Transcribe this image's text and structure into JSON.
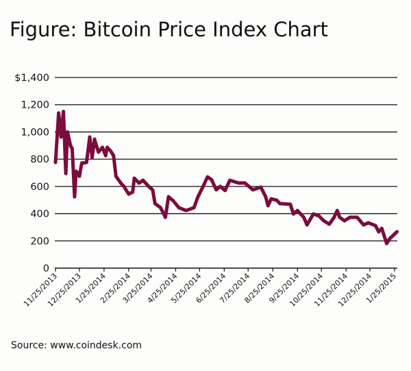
{
  "chart_data": {
    "type": "line",
    "title": "Figure: Bitcoin Price Index Chart",
    "source": "Source: www.coindesk.com",
    "xlabel": "",
    "ylabel": "",
    "ylim": [
      0,
      1400
    ],
    "grid": "horizontal",
    "legend": "none",
    "line_color": "#7b0c3d",
    "y_ticks": [
      {
        "value": 0,
        "label": "0"
      },
      {
        "value": 200,
        "label": "200"
      },
      {
        "value": 400,
        "label": "400"
      },
      {
        "value": 600,
        "label": "600"
      },
      {
        "value": 800,
        "label": "800"
      },
      {
        "value": 1000,
        "label": "1,000"
      },
      {
        "value": 1200,
        "label": "1,200"
      },
      {
        "value": 1400,
        "label": "$1,400"
      }
    ],
    "x_ticks": [
      "11/25/2013",
      "12/25/2013",
      "1/25/2014",
      "2/25/2014",
      "3/25/2014",
      "4/25/2014",
      "5/25/2014",
      "6/25/2014",
      "7/25/2014",
      "8/25/2014",
      "9/25/2014",
      "10/25/2014",
      "11/25/2014",
      "12/25/2014",
      "1/25/2015"
    ],
    "series": [
      {
        "points": [
          [
            "2013-11-25",
            777
          ],
          [
            "2013-11-29",
            1139
          ],
          [
            "2013-12-02",
            963
          ],
          [
            "2013-12-05",
            1150
          ],
          [
            "2013-12-08",
            695
          ],
          [
            "2013-12-10",
            1000
          ],
          [
            "2013-12-14",
            897
          ],
          [
            "2013-12-16",
            877
          ],
          [
            "2013-12-19",
            524
          ],
          [
            "2013-12-21",
            711
          ],
          [
            "2013-12-25",
            675
          ],
          [
            "2013-12-28",
            771
          ],
          [
            "2014-01-03",
            776
          ],
          [
            "2014-01-07",
            963
          ],
          [
            "2014-01-10",
            811
          ],
          [
            "2014-01-13",
            947
          ],
          [
            "2014-01-18",
            852
          ],
          [
            "2014-01-23",
            887
          ],
          [
            "2014-01-27",
            826
          ],
          [
            "2014-01-29",
            887
          ],
          [
            "2014-02-02",
            862
          ],
          [
            "2014-02-06",
            826
          ],
          [
            "2014-02-09",
            675
          ],
          [
            "2014-02-15",
            625
          ],
          [
            "2014-02-19",
            600
          ],
          [
            "2014-02-25",
            544
          ],
          [
            "2014-03-02",
            559
          ],
          [
            "2014-03-04",
            660
          ],
          [
            "2014-03-10",
            625
          ],
          [
            "2014-03-15",
            645
          ],
          [
            "2014-03-23",
            595
          ],
          [
            "2014-03-27",
            575
          ],
          [
            "2014-03-30",
            474
          ],
          [
            "2014-04-06",
            444
          ],
          [
            "2014-04-12",
            373
          ],
          [
            "2014-04-16",
            524
          ],
          [
            "2014-04-22",
            494
          ],
          [
            "2014-04-29",
            444
          ],
          [
            "2014-05-08",
            423
          ],
          [
            "2014-05-18",
            444
          ],
          [
            "2014-05-23",
            524
          ],
          [
            "2014-05-29",
            595
          ],
          [
            "2014-06-04",
            670
          ],
          [
            "2014-06-09",
            650
          ],
          [
            "2014-06-15",
            575
          ],
          [
            "2014-06-20",
            600
          ],
          [
            "2014-06-26",
            570
          ],
          [
            "2014-07-02",
            645
          ],
          [
            "2014-07-13",
            625
          ],
          [
            "2014-07-21",
            625
          ],
          [
            "2014-07-31",
            575
          ],
          [
            "2014-08-10",
            595
          ],
          [
            "2014-08-16",
            524
          ],
          [
            "2014-08-19",
            459
          ],
          [
            "2014-08-23",
            509
          ],
          [
            "2014-08-30",
            499
          ],
          [
            "2014-09-03",
            474
          ],
          [
            "2014-09-16",
            469
          ],
          [
            "2014-09-20",
            398
          ],
          [
            "2014-09-25",
            423
          ],
          [
            "2014-10-03",
            373
          ],
          [
            "2014-10-07",
            318
          ],
          [
            "2014-10-15",
            398
          ],
          [
            "2014-10-22",
            383
          ],
          [
            "2014-10-28",
            348
          ],
          [
            "2014-11-04",
            323
          ],
          [
            "2014-11-10",
            373
          ],
          [
            "2014-11-14",
            423
          ],
          [
            "2014-11-17",
            373
          ],
          [
            "2014-11-23",
            348
          ],
          [
            "2014-11-30",
            373
          ],
          [
            "2014-12-09",
            373
          ],
          [
            "2014-12-17",
            318
          ],
          [
            "2014-12-23",
            333
          ],
          [
            "2015-01-01",
            312
          ],
          [
            "2015-01-05",
            267
          ],
          [
            "2015-01-09",
            292
          ],
          [
            "2015-01-15",
            181
          ],
          [
            "2015-01-19",
            217
          ],
          [
            "2015-01-28",
            267
          ]
        ]
      }
    ]
  }
}
